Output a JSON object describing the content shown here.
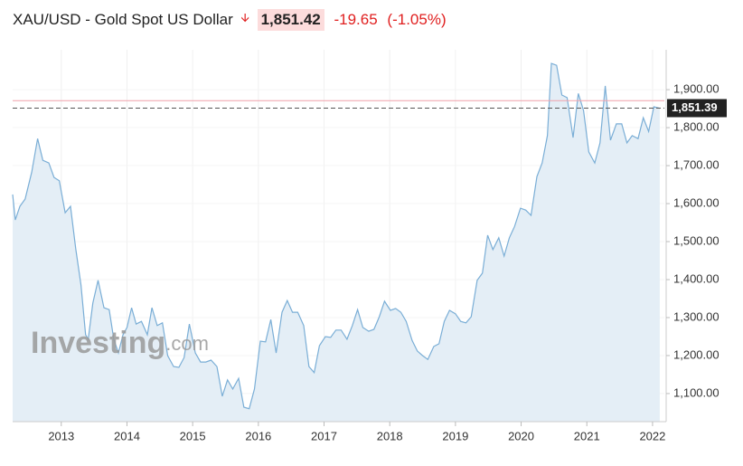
{
  "chart_data": {
    "type": "area",
    "title": "XAU/USD - Gold Spot US Dollar",
    "last_price": "1,851.42",
    "change": "-19.65",
    "change_percent": "(-1.05%)",
    "watermark": [
      "Investing",
      ".com"
    ],
    "current_value": 1851.39,
    "current_label": "1,851.39",
    "previous_close": 1871.07,
    "line_color": "#7aaed6",
    "fill_color": "#e4eef6",
    "grid": true,
    "xlim": [
      2012.26,
      2022.18
    ],
    "xticks": [
      2013,
      2014,
      2015,
      2016,
      2017,
      2018,
      2019,
      2020,
      2021,
      2022
    ],
    "ylim": [
      1026,
      2005
    ],
    "yticks": [
      {
        "value": 1100,
        "label": "1,100.00"
      },
      {
        "value": 1200,
        "label": "1,200.00"
      },
      {
        "value": 1300,
        "label": "1,300.00"
      },
      {
        "value": 1400,
        "label": "1,400.00"
      },
      {
        "value": 1500,
        "label": "1,500.00"
      },
      {
        "value": 1600,
        "label": "1,600.00"
      },
      {
        "value": 1700,
        "label": "1,700.00"
      },
      {
        "value": 1800,
        "label": "1,800.00"
      },
      {
        "value": 1900,
        "label": "1,900.00"
      }
    ],
    "x": [
      2012.26,
      2012.3,
      2012.37,
      2012.45,
      2012.55,
      2012.64,
      2012.72,
      2012.81,
      2012.89,
      2012.97,
      2013.06,
      2013.14,
      2013.22,
      2013.3,
      2013.37,
      2013.41,
      2013.48,
      2013.56,
      2013.65,
      2013.73,
      2013.8,
      2013.87,
      2013.94,
      2014.0,
      2014.07,
      2014.14,
      2014.22,
      2014.31,
      2014.38,
      2014.46,
      2014.54,
      2014.62,
      2014.71,
      2014.79,
      2014.87,
      2014.95,
      2015.04,
      2015.12,
      2015.2,
      2015.28,
      2015.37,
      2015.45,
      2015.53,
      2015.61,
      2015.7,
      2015.78,
      2015.86,
      2015.94,
      2016.03,
      2016.11,
      2016.19,
      2016.27,
      2016.36,
      2016.44,
      2016.52,
      2016.6,
      2016.69,
      2016.77,
      2016.85,
      2016.93,
      2017.02,
      2017.1,
      2017.18,
      2017.26,
      2017.35,
      2017.43,
      2017.51,
      2017.59,
      2017.68,
      2017.76,
      2017.84,
      2017.92,
      2018.01,
      2018.09,
      2018.17,
      2018.25,
      2018.34,
      2018.42,
      2018.5,
      2018.58,
      2018.67,
      2018.75,
      2018.83,
      2018.91,
      2019.0,
      2019.08,
      2019.16,
      2019.24,
      2019.33,
      2019.41,
      2019.49,
      2019.57,
      2019.66,
      2019.74,
      2019.82,
      2019.9,
      2019.99,
      2020.07,
      2020.15,
      2020.24,
      2020.32,
      2020.4,
      2020.46,
      2020.54,
      2020.62,
      2020.7,
      2020.79,
      2020.87,
      2020.95,
      2021.03,
      2021.12,
      2021.2,
      2021.28,
      2021.36,
      2021.45,
      2021.53,
      2021.61,
      2021.69,
      2021.78,
      2021.86,
      2021.94,
      2022.02,
      2022.11
    ],
    "values": [
      1624,
      1557,
      1593,
      1612,
      1683,
      1771,
      1714,
      1707,
      1669,
      1660,
      1576,
      1593,
      1481,
      1386,
      1255,
      1243,
      1338,
      1398,
      1326,
      1321,
      1243,
      1207,
      1255,
      1274,
      1326,
      1283,
      1290,
      1255,
      1326,
      1279,
      1286,
      1200,
      1171,
      1169,
      1195,
      1283,
      1207,
      1183,
      1183,
      1188,
      1171,
      1093,
      1136,
      1112,
      1140,
      1064,
      1060,
      1112,
      1238,
      1236,
      1295,
      1207,
      1314,
      1345,
      1314,
      1314,
      1279,
      1171,
      1155,
      1226,
      1250,
      1248,
      1267,
      1267,
      1243,
      1279,
      1321,
      1274,
      1264,
      1269,
      1302,
      1343,
      1319,
      1324,
      1314,
      1290,
      1240,
      1212,
      1200,
      1190,
      1224,
      1231,
      1290,
      1319,
      1310,
      1290,
      1286,
      1302,
      1398,
      1417,
      1517,
      1479,
      1510,
      1462,
      1510,
      1540,
      1588,
      1583,
      1569,
      1671,
      1707,
      1779,
      1969,
      1964,
      1886,
      1879,
      1774,
      1890,
      1845,
      1736,
      1707,
      1760,
      1910,
      1767,
      1810,
      1810,
      1760,
      1779,
      1771,
      1826,
      1790,
      1855,
      1851
    ]
  }
}
